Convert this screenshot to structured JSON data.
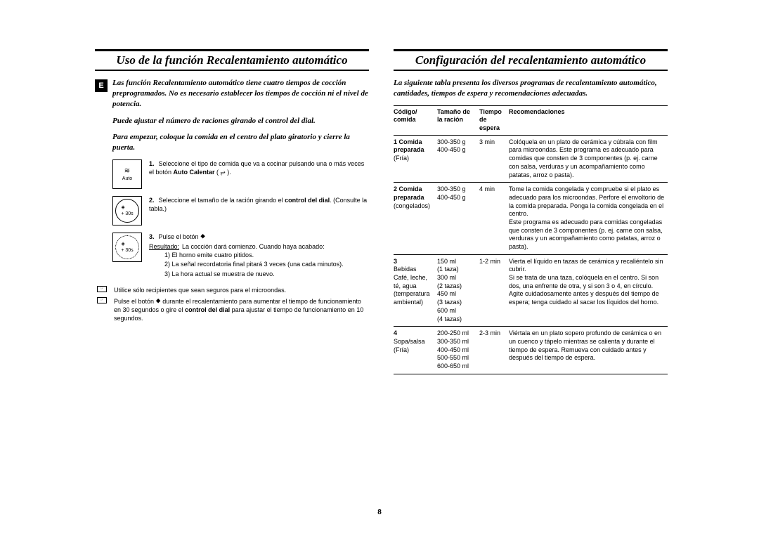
{
  "page_number": "8",
  "language_badge": "E",
  "left": {
    "title": "Uso de la función Recalentamiento automático",
    "intro1": "Las función Recalentamiento automático tiene cuatro tiempos de cocción preprogramados. No es necesario establecer los tiempos de cocción ni el nivel de potencia.",
    "intro2": "Puede ajustar el número de raciones girando el control del dial.",
    "intro3": "Para empezar, coloque la comida en el centro del plato giratorio y cierre la puerta.",
    "icon1_label": "Auto",
    "icon2_label": "+ 30s",
    "icon3_label": "+ 30s",
    "step1_num": "1.",
    "step1_a": "Seleccione el tipo de comida que va a cocinar pulsando una o más veces el botón ",
    "step1_b": "Auto Calentar",
    "step1_c": " ( ⥂ ).",
    "step2_num": "2.",
    "step2_a": "Seleccione el tamaño de la ración girando el ",
    "step2_b": "control del dial",
    "step2_c": ". (Consulte la tabla.)",
    "step3_num": "3.",
    "step3_a": "Pulse el botón ⯁",
    "step3_res_label": "Resultado:",
    "step3_res": "La cocción dará comienzo. Cuando haya acabado:",
    "step3_i1": "1)  El horno emite cuatro pitidos.",
    "step3_i2": "2)  La señal recordatoria final pitará 3 veces (una cada minutos).",
    "step3_i3": "3)  La hora actual se muestra de nuevo.",
    "note1": "Utilice sólo recipientes que sean seguros para el microondas.",
    "note2_a": "Pulse el botón ⯁ durante el recalentamiento para aumentar el tiempo de funcionamiento en 30 segundos o gire el ",
    "note2_b": "control del dial",
    "note2_c": " para ajustar el tiempo de funcionamiento en 10 segundos."
  },
  "right": {
    "title": "Configuración del recalentamiento automático",
    "intro": "La siguiente tabla presenta los diversos programas de recalentamiento automático, cantidades, tiempos de espera y recomendaciones adecuadas.",
    "headers": {
      "code": "Código/ comida",
      "size": "Tamaño de la ración",
      "time": "Tiempo de espera",
      "rec": "Recomendaciones"
    },
    "rows": [
      {
        "code_bold": "1 Comida preparada",
        "code_plain": "(Fría)",
        "size": "300-350 g\n400-450 g",
        "time": "3 min",
        "rec": "Colóquela en un plato de cerámica y cúbrala con film para microondas. Este programa es adecuado para comidas que consten de 3 componentes (p. ej. carne con salsa, verduras y un acompañamiento como patatas, arroz o pasta)."
      },
      {
        "code_bold": "2 Comida preparada",
        "code_plain": "(congelados)",
        "size": "300-350 g\n400-450 g",
        "time": "4 min",
        "rec": "Tome la comida congelada y compruebe si el plato es adecuado para los microondas. Perfore el envoltorio de la comida preparada. Ponga la comida congelada en el centro.\nEste programa es adecuado para comidas congeladas que consten de 3 componentes (p. ej. carne con salsa, verduras y un acompañamiento como patatas, arroz o pasta)."
      },
      {
        "code_bold": "3 ",
        "code_plain": "Bebidas\nCafé, leche, té, agua (temperatura ambiental)",
        "size": "150 ml\n(1 taza)\n300 ml\n(2 tazas)\n450 ml\n(3 tazas)\n600 ml\n(4 tazas)",
        "time": "1-2 min",
        "rec": "Vierta el líquido en tazas de cerámica y recaliéntelo sin cubrir.\nSi se trata de una taza, colóquela en el centro. Si son dos, una enfrente de otra, y si son 3 o 4, en círculo.\nAgite cuidadosamente antes y después del tiempo de espera; tenga cuidado al sacar los líquidos del horno."
      },
      {
        "code_bold": "4 ",
        "code_plain": "Sopa/salsa\n(Fría)",
        "size": "200-250 ml\n300-350 ml\n400-450 ml\n500-550 ml\n600-650 ml",
        "time": "2-3 min",
        "rec": "Viértala en un plato sopero profundo de cerámica o en un cuenco y tápelo mientras se calienta y durante el tiempo de espera. Remueva con cuidado antes y después del tiempo de espera."
      }
    ]
  },
  "colors": {
    "text": "#000000",
    "bg": "#ffffff"
  },
  "fonts": {
    "body": "Arial",
    "title": "Times New Roman",
    "body_size_pt": 9,
    "title_size_pt": 17
  }
}
